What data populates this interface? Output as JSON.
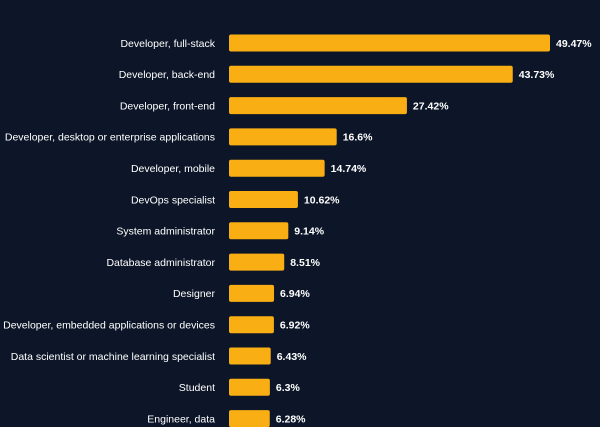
{
  "chart_data": {
    "type": "bar",
    "orientation": "horizontal",
    "categories": [
      "Developer, full-stack",
      "Developer, back-end",
      "Developer, front-end",
      "Developer, desktop or enterprise applications",
      "Developer, mobile",
      "DevOps specialist",
      "System administrator",
      "Database administrator",
      "Designer",
      "Developer, embedded applications or devices",
      "Data scientist or machine learning specialist",
      "Student",
      "Engineer, data"
    ],
    "values": [
      49.47,
      43.73,
      27.42,
      16.6,
      14.74,
      10.62,
      9.14,
      8.51,
      6.94,
      6.92,
      6.43,
      6.3,
      6.28
    ],
    "value_labels": [
      "49.47%",
      "43.73%",
      "27.42%",
      "16.6%",
      "14.74%",
      "10.62%",
      "9.14%",
      "8.51%",
      "6.94%",
      "6.92%",
      "6.43%",
      "6.3%",
      "6.28%"
    ],
    "title": "",
    "xlabel": "",
    "ylabel": "",
    "xlim": [
      0,
      49.47
    ],
    "grid": false,
    "legend": "none",
    "colors": {
      "bar": "#f9ae14",
      "background": "#0d1628",
      "text": "#ffffff"
    }
  }
}
